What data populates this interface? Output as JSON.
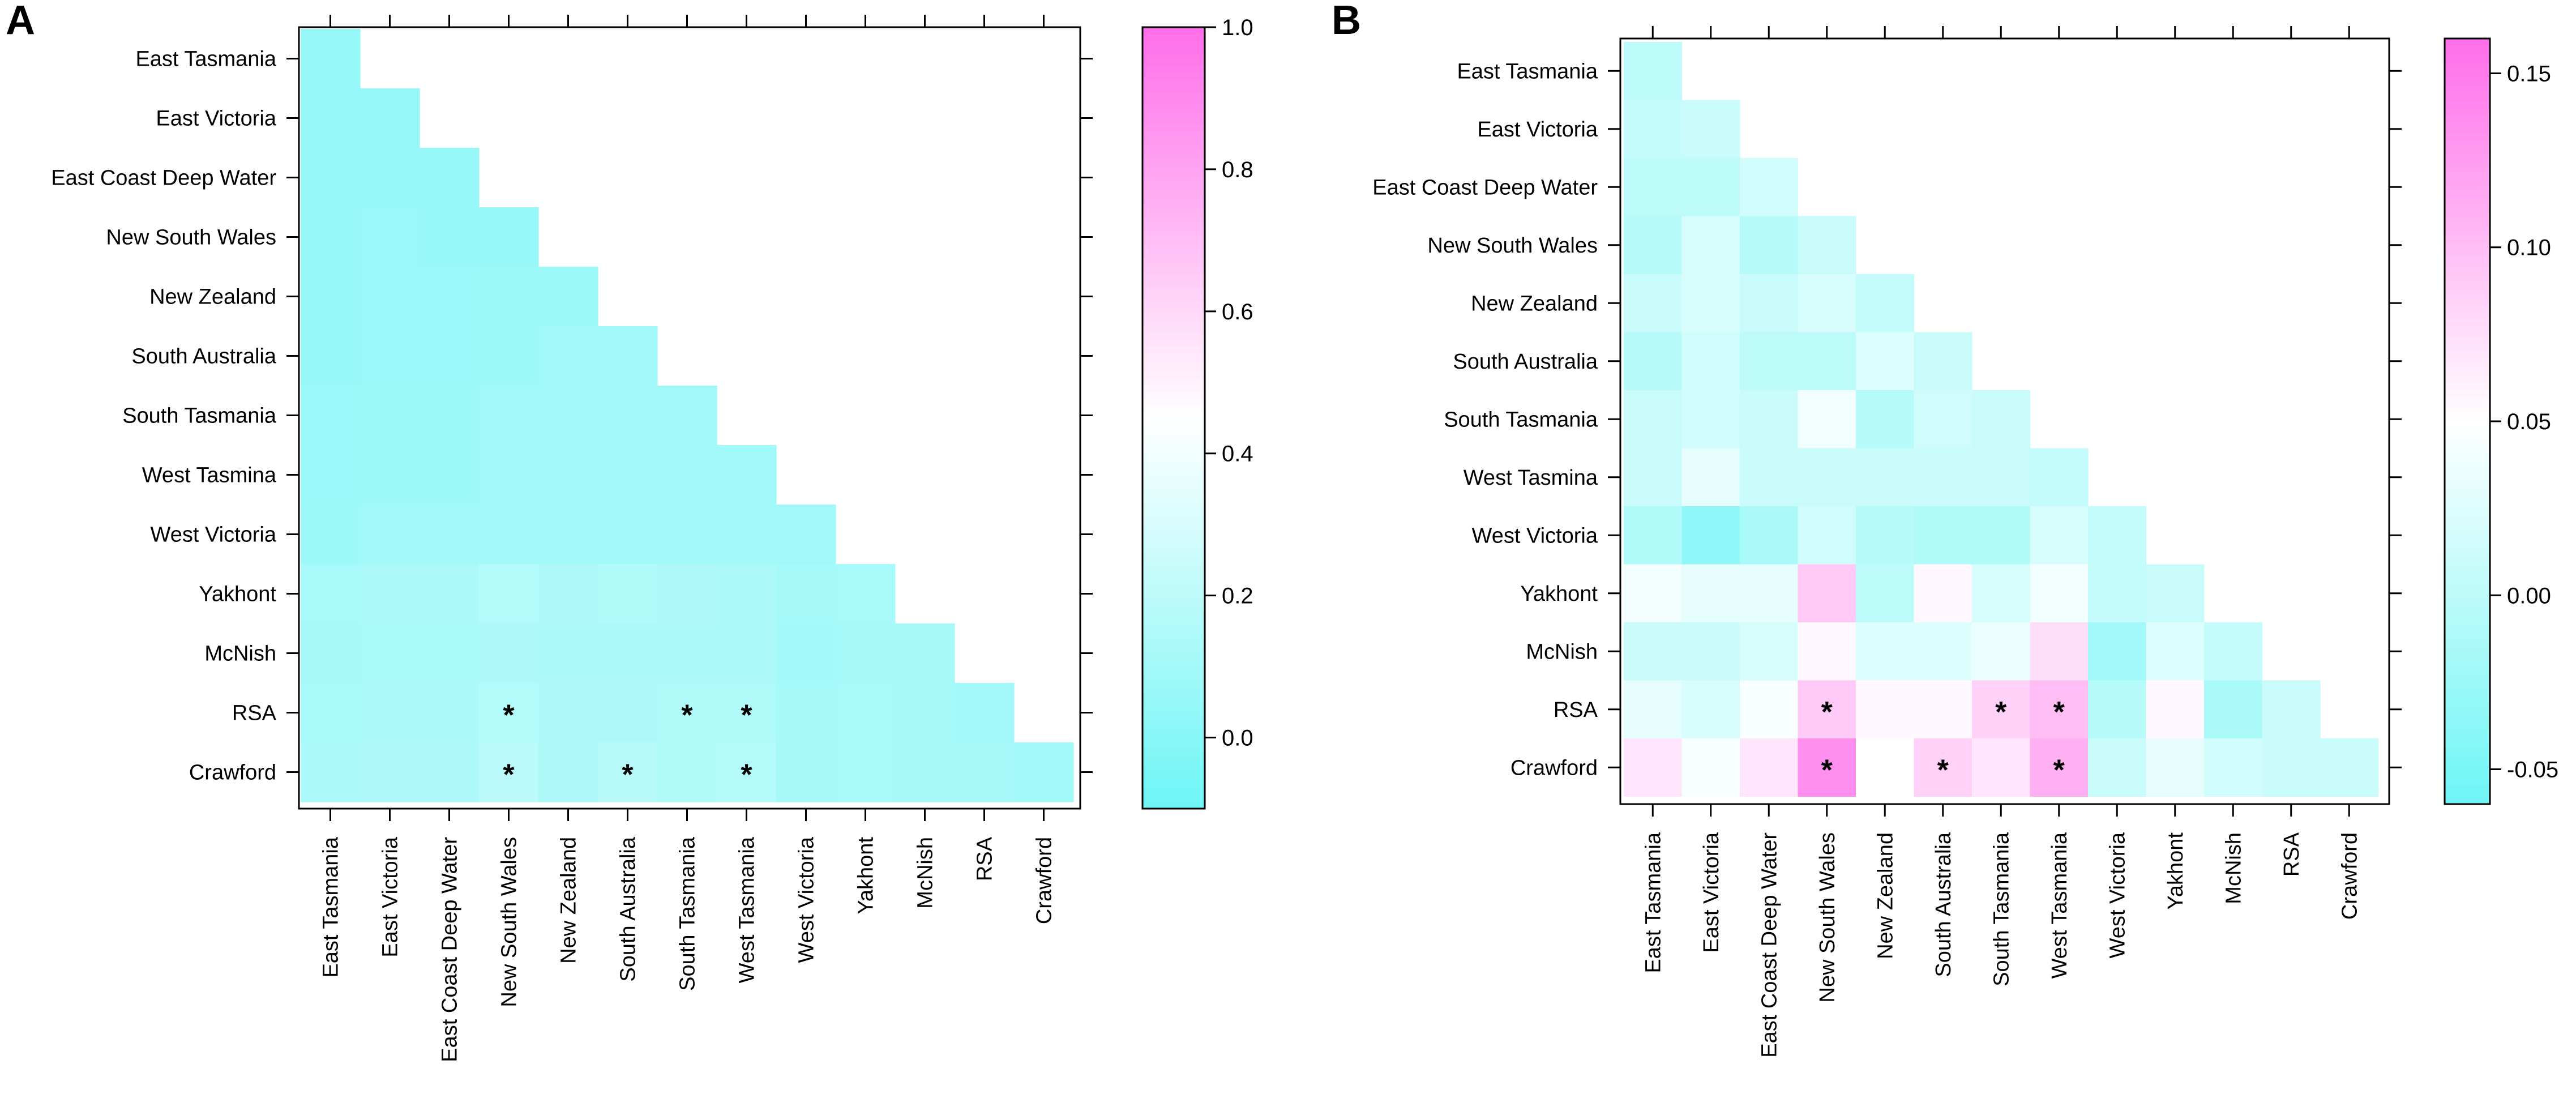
{
  "colors": {
    "low": "#6EF5F5",
    "mid": "#FFFFFF",
    "high": "#FF6EE9",
    "frame": "#000000"
  },
  "chart_data": [
    {
      "type": "heatmap",
      "panel": "A",
      "rows": [
        "East Tasmania",
        "East Victoria",
        "East Coast Deep Water",
        "New South Wales",
        "New Zealand",
        "South Australia",
        "South Tasmania",
        "West Tasmina",
        "West Victoria",
        "Yakhont",
        "McNish",
        "RSA",
        "Crawford"
      ],
      "columns": [
        "East Tasmania",
        "East Victoria",
        "East Coast Deep Water",
        "New South Wales",
        "New Zealand",
        "South Australia",
        "South Tasmania",
        "West Tasmania",
        "West Victoria",
        "Yakhont",
        "McNish",
        "RSA",
        "Crawford"
      ],
      "colorbar": {
        "min": -0.1,
        "mid": 0.45,
        "max": 1.0,
        "ticks": [
          "0.0",
          "0.2",
          "0.4",
          "0.6",
          "0.8",
          "1.0"
        ],
        "tick_values": [
          0.0,
          0.2,
          0.4,
          0.6,
          0.8,
          1.0
        ]
      },
      "matrix": [
        [
          0.05
        ],
        [
          0.05,
          0.06
        ],
        [
          0.05,
          0.06,
          0.06
        ],
        [
          0.06,
          0.07,
          0.06,
          0.06
        ],
        [
          0.06,
          0.07,
          0.07,
          0.08,
          0.08
        ],
        [
          0.06,
          0.07,
          0.07,
          0.08,
          0.09,
          0.09
        ],
        [
          0.07,
          0.08,
          0.08,
          0.09,
          0.09,
          0.09,
          0.09
        ],
        [
          0.07,
          0.08,
          0.08,
          0.09,
          0.09,
          0.09,
          0.09,
          0.09
        ],
        [
          0.08,
          0.09,
          0.09,
          0.1,
          0.09,
          0.09,
          0.09,
          0.09,
          0.09
        ],
        [
          0.12,
          0.13,
          0.13,
          0.16,
          0.14,
          0.15,
          0.14,
          0.13,
          0.11,
          0.12
        ],
        [
          0.11,
          0.12,
          0.12,
          0.14,
          0.13,
          0.13,
          0.13,
          0.13,
          0.1,
          0.11,
          0.11
        ],
        [
          0.12,
          0.13,
          0.13,
          0.16,
          0.14,
          0.14,
          0.15,
          0.15,
          0.11,
          0.12,
          0.11,
          0.1
        ],
        [
          0.13,
          0.14,
          0.14,
          0.19,
          0.14,
          0.18,
          0.15,
          0.17,
          0.11,
          0.12,
          0.11,
          0.11,
          0.1
        ]
      ],
      "significant": [
        [
          11,
          3
        ],
        [
          11,
          6
        ],
        [
          11,
          7
        ],
        [
          12,
          3
        ],
        [
          12,
          5
        ],
        [
          12,
          7
        ]
      ],
      "marker": "*"
    },
    {
      "type": "heatmap",
      "panel": "B",
      "rows": [
        "East Tasmania",
        "East Victoria",
        "East Coast Deep Water",
        "New South Wales",
        "New Zealand",
        "South Australia",
        "South Tasmania",
        "West Tasmina",
        "West Victoria",
        "Yakhont",
        "McNish",
        "RSA",
        "Crawford"
      ],
      "columns": [
        "East Tasmania",
        "East Victoria",
        "East Coast Deep Water",
        "New South Wales",
        "New Zealand",
        "South Australia",
        "South Tasmania",
        "West Tasmania",
        "West Victoria",
        "Yakhont",
        "McNish",
        "RSA",
        "Crawford"
      ],
      "colorbar": {
        "min": -0.06,
        "mid": 0.05,
        "max": 0.16,
        "ticks": [
          "-0.05",
          "0.00",
          "0.05",
          "0.10",
          "0.15"
        ],
        "tick_values": [
          -0.05,
          0.0,
          0.05,
          0.1,
          0.15
        ]
      },
      "matrix": [
        [
          0.0
        ],
        [
          0.005,
          0.01
        ],
        [
          0.0,
          0.0,
          0.015
        ],
        [
          -0.005,
          0.02,
          -0.005,
          0.01
        ],
        [
          0.01,
          0.02,
          0.01,
          0.02,
          0.005
        ],
        [
          -0.005,
          0.015,
          0.0,
          0.0,
          0.025,
          0.01
        ],
        [
          0.01,
          0.015,
          0.01,
          0.04,
          -0.005,
          0.015,
          0.01
        ],
        [
          0.01,
          0.03,
          0.01,
          0.01,
          0.01,
          0.01,
          0.01,
          0.005
        ],
        [
          -0.01,
          -0.035,
          -0.015,
          0.015,
          -0.005,
          -0.01,
          -0.01,
          0.02,
          0.005
        ],
        [
          0.04,
          0.03,
          0.03,
          0.09,
          0.0,
          0.055,
          0.02,
          0.04,
          0.005,
          0.01
        ],
        [
          0.01,
          0.01,
          0.02,
          0.055,
          0.025,
          0.025,
          0.035,
          0.075,
          -0.02,
          0.025,
          0.005
        ],
        [
          0.03,
          0.02,
          0.045,
          0.09,
          0.055,
          0.055,
          0.085,
          0.1,
          -0.005,
          0.055,
          -0.015,
          0.01
        ],
        [
          0.07,
          0.045,
          0.07,
          0.135,
          0.05,
          0.085,
          0.07,
          0.11,
          0.01,
          0.03,
          0.015,
          0.01,
          0.01
        ]
      ],
      "significant": [
        [
          11,
          3
        ],
        [
          11,
          6
        ],
        [
          11,
          7
        ],
        [
          12,
          3
        ],
        [
          12,
          5
        ],
        [
          12,
          7
        ]
      ],
      "marker": "*"
    }
  ]
}
